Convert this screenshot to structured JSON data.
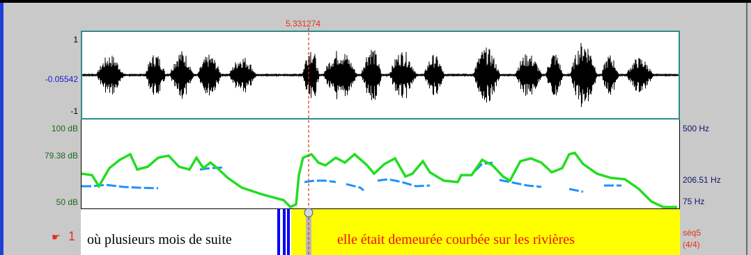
{
  "cursor": {
    "time_label": "5.331274"
  },
  "waveform": {
    "y_max": "1",
    "y_mid": "-0.05542",
    "y_min": "-1"
  },
  "intensity": {
    "top": "100 dB",
    "cursor_value": "79.38 dB",
    "bottom": "50 dB",
    "color": "#22dd22"
  },
  "pitch": {
    "top": "500 Hz",
    "cursor_value": "206.51 Hz",
    "bottom": "75 Hz",
    "color": "#1e90ff"
  },
  "tier": {
    "pointer_icon": "pointing-hand-icon",
    "number": "1",
    "segment_left": "où plusieurs mois de suite",
    "segment_right": "elle était demeurée courbée sur les rivières",
    "seq_label": "séq5",
    "seq_count": "(4/4)",
    "highlight_color": "#ffff00"
  },
  "colors": {
    "accent_blue": "#0000ff",
    "cursor_red": "#e0301e"
  }
}
